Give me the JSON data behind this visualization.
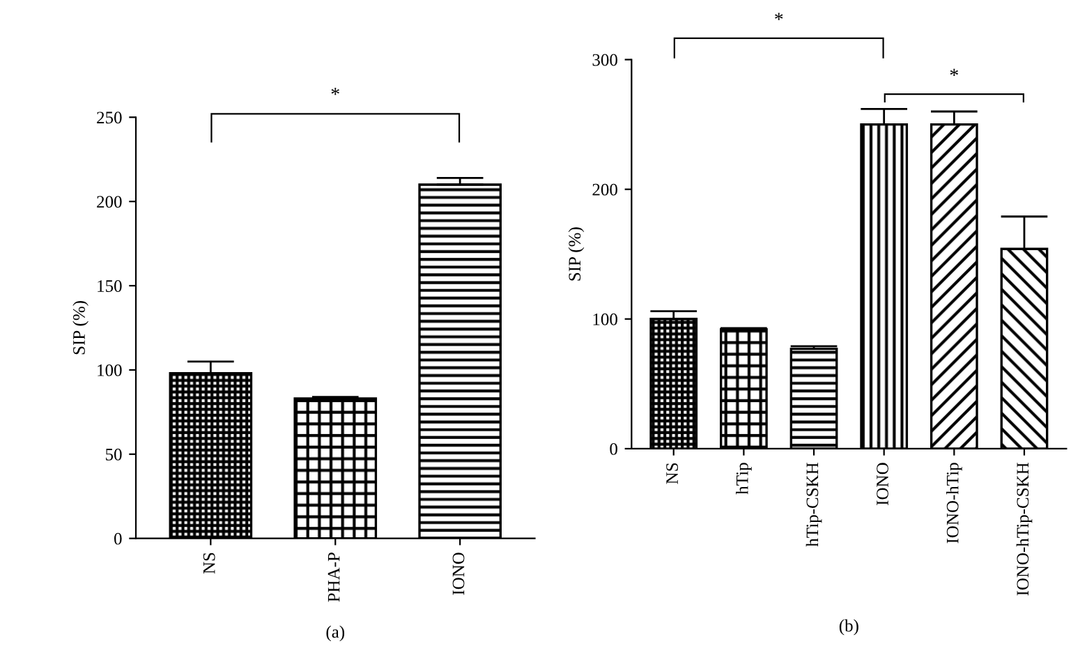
{
  "chart_data": [
    {
      "type": "bar",
      "ylabel": "SIP (%)",
      "xlabel": "(a)",
      "categories": [
        "NS",
        "PHA-P",
        "IONO"
      ],
      "values": [
        98,
        83,
        210
      ],
      "errors": [
        [
          98,
          105
        ],
        [
          83,
          84
        ],
        [
          210,
          214
        ]
      ],
      "color": "#000000",
      "ylim": [
        0,
        250
      ],
      "yticks": [
        0,
        50,
        100,
        150,
        200,
        250
      ],
      "grid": false,
      "legend": false,
      "annotations": [
        "*"
      ]
    },
    {
      "type": "bar",
      "ylabel": "SIP (%)",
      "xlabel": "(b)",
      "categories": [
        "NS",
        "hTip",
        "hTip-CSKH",
        "IONO",
        "IONO-hTip",
        "IONO-hTip-CSKH"
      ],
      "values": [
        100,
        92,
        77,
        250,
        250,
        154
      ],
      "errors": [
        [
          100,
          106
        ],
        [
          92,
          93
        ],
        [
          77,
          79
        ],
        [
          250,
          262
        ],
        [
          250,
          260
        ],
        [
          154,
          179
        ]
      ],
      "color": "#000000",
      "ylim": [
        0,
        300
      ],
      "yticks": [
        0,
        100,
        200,
        300
      ],
      "grid": false,
      "legend": false,
      "annotations": [
        "*",
        "*"
      ]
    }
  ]
}
